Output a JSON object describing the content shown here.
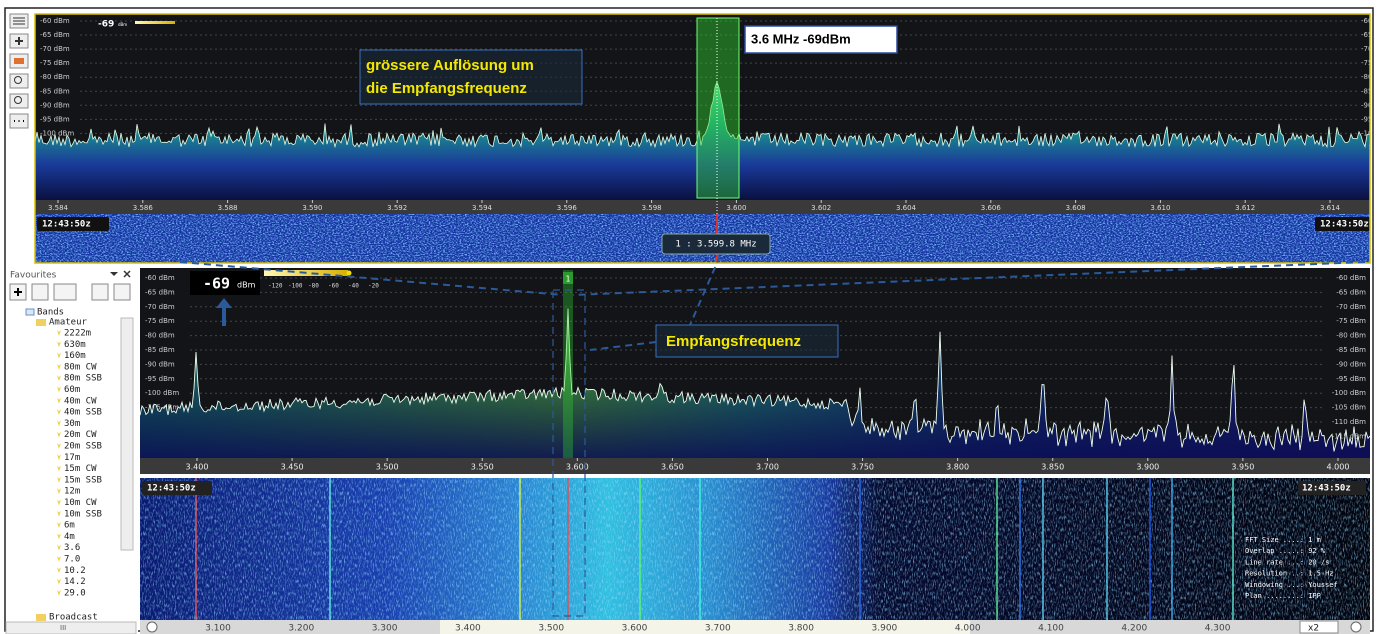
{
  "top_panel": {
    "level": "-69",
    "level_unit": "dBm",
    "dbm_labels": [
      "-60 dBm",
      "-65 dBm",
      "-70 dBm",
      "-75 dBm",
      "-80 dBm",
      "-85 dBm",
      "-90 dBm",
      "-95 dBm",
      "-100 dBm",
      "-105 dBm",
      "-110 dBm",
      "-115 dBm",
      "-120 dBm"
    ],
    "freq_ticks": [
      "3.584",
      "3.586",
      "3.588",
      "3.590",
      "3.592",
      "3.594",
      "3.596",
      "3.598",
      "3.600",
      "3.602",
      "3.604",
      "3.606",
      "3.608",
      "3.610",
      "3.612",
      "3.614"
    ],
    "time": "12:43:50z",
    "marker_label": "1 : 3.599.8 MHz",
    "annotation": [
      "grössere Auflösung um",
      "die Empfangsfrequenz"
    ],
    "callout": "3.6 MHz  -69dBm"
  },
  "main_panel": {
    "level": "-69",
    "level_unit": "dBm",
    "scale_labels": [
      "-120",
      "-100",
      "-80",
      "-60",
      "-40",
      "-20"
    ],
    "dbm_labels": [
      "-60 dBm",
      "-65 dBm",
      "-70 dBm",
      "-75 dBm",
      "-80 dBm",
      "-85 dBm",
      "-90 dBm",
      "-95 dBm",
      "-100 dBm",
      "-105 dBm",
      "-110 dBm",
      "-115 dBm",
      "-120 dBm"
    ],
    "marker": "1",
    "freq_ticks": [
      "3.400",
      "3.450",
      "3.500",
      "3.550",
      "3.600",
      "3.650",
      "3.700",
      "3.750",
      "3.800",
      "3.850",
      "3.900",
      "3.950",
      "4.000"
    ],
    "annotation": "Empfangsfrequenz",
    "time": "12:43:50z",
    "info": [
      "FFT Size ....: 1 m",
      "Overlap .....: 92 %",
      "Line rate ...: 20 /s",
      "Resolution ..: 1.5 Hz",
      "Windowing ...: Youssef",
      "Plan ........: IPP"
    ],
    "bottom_ticks": [
      "3.100",
      "3.200",
      "3.300",
      "3.400",
      "3.500",
      "3.600",
      "3.700",
      "3.800",
      "3.900",
      "4.000",
      "4.100",
      "4.200",
      "4.300"
    ],
    "zoom": "x2"
  },
  "sidebar": {
    "title": "Favourites",
    "root": "Bands",
    "group": "Amateur",
    "items": [
      "2222m",
      "630m",
      "160m",
      "80m CW",
      "80m SSB",
      "60m",
      "40m CW",
      "40m SSB",
      "30m",
      "20m CW",
      "20m SSB",
      "17m",
      "15m CW",
      "15m SSB",
      "12m",
      "10m CW",
      "10m SSB",
      "6m",
      "4m",
      "3.6",
      "7.0",
      "10.2",
      "14.2",
      "29.0"
    ],
    "next_group": "Broadcast",
    "scroll_label": "III"
  }
}
